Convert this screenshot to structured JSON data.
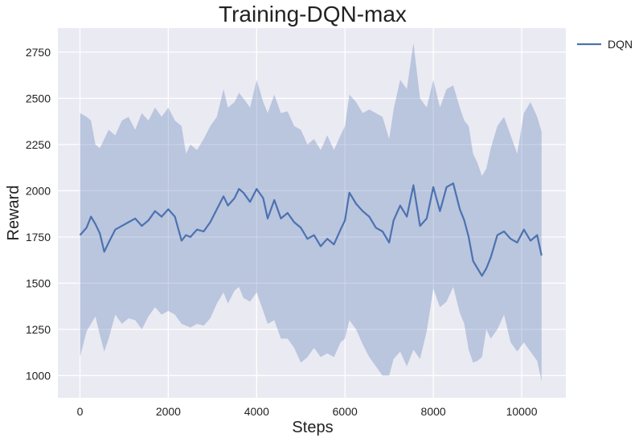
{
  "chart_data": {
    "type": "line",
    "title": "Training-DQN-max",
    "xlabel": "Steps",
    "ylabel": "Reward",
    "xlim": [
      -500,
      11000
    ],
    "ylim": [
      880,
      2880
    ],
    "xticks": [
      0,
      2000,
      4000,
      6000,
      8000,
      10000
    ],
    "yticks": [
      1000,
      1250,
      1500,
      1750,
      2000,
      2250,
      2500,
      2750
    ],
    "grid": true,
    "legend": "outside-top-right",
    "colors": {
      "background": "#eaeaf2",
      "grid": "#ffffff",
      "line": "#4c72b0",
      "band": "#4c72b0"
    },
    "series": [
      {
        "name": "DQN",
        "x": [
          0,
          150,
          250,
          350,
          450,
          550,
          650,
          800,
          950,
          1100,
          1250,
          1400,
          1550,
          1700,
          1850,
          2000,
          2150,
          2300,
          2400,
          2500,
          2650,
          2800,
          2950,
          3100,
          3250,
          3350,
          3500,
          3600,
          3700,
          3850,
          4000,
          4150,
          4250,
          4400,
          4550,
          4700,
          4850,
          5000,
          5150,
          5300,
          5450,
          5600,
          5750,
          5900,
          6000,
          6100,
          6250,
          6400,
          6550,
          6700,
          6850,
          7000,
          7100,
          7250,
          7400,
          7550,
          7700,
          7850,
          8000,
          8150,
          8300,
          8450,
          8600,
          8700,
          8800,
          8900,
          9000,
          9100,
          9200,
          9300,
          9450,
          9600,
          9750,
          9900,
          10050,
          10200,
          10350,
          10450
        ],
        "values": [
          1760,
          1800,
          1860,
          1820,
          1770,
          1670,
          1720,
          1790,
          1810,
          1830,
          1850,
          1810,
          1840,
          1890,
          1860,
          1900,
          1860,
          1730,
          1760,
          1750,
          1790,
          1780,
          1830,
          1900,
          1970,
          1920,
          1960,
          2010,
          1990,
          1940,
          2010,
          1960,
          1850,
          1950,
          1850,
          1880,
          1830,
          1800,
          1740,
          1760,
          1700,
          1740,
          1710,
          1790,
          1840,
          1990,
          1930,
          1890,
          1860,
          1800,
          1780,
          1720,
          1840,
          1920,
          1860,
          2030,
          1810,
          1850,
          2020,
          1890,
          2020,
          2040,
          1900,
          1840,
          1750,
          1620,
          1580,
          1540,
          1580,
          1640,
          1760,
          1780,
          1740,
          1720,
          1790,
          1730,
          1760,
          1650
        ],
        "upper": [
          2420,
          2400,
          2380,
          2250,
          2230,
          2280,
          2330,
          2300,
          2380,
          2400,
          2330,
          2420,
          2380,
          2450,
          2400,
          2450,
          2380,
          2350,
          2200,
          2250,
          2220,
          2280,
          2350,
          2400,
          2550,
          2450,
          2480,
          2530,
          2500,
          2450,
          2600,
          2480,
          2420,
          2520,
          2420,
          2430,
          2350,
          2330,
          2250,
          2280,
          2220,
          2300,
          2220,
          2300,
          2350,
          2520,
          2480,
          2420,
          2440,
          2420,
          2400,
          2280,
          2440,
          2600,
          2550,
          2800,
          2500,
          2450,
          2600,
          2450,
          2550,
          2570,
          2450,
          2380,
          2350,
          2200,
          2150,
          2080,
          2120,
          2230,
          2350,
          2400,
          2300,
          2200,
          2420,
          2480,
          2400,
          2320
        ],
        "lower": [
          1100,
          1240,
          1280,
          1320,
          1220,
          1130,
          1200,
          1330,
          1280,
          1310,
          1300,
          1250,
          1320,
          1370,
          1330,
          1350,
          1330,
          1280,
          1270,
          1260,
          1280,
          1270,
          1310,
          1390,
          1450,
          1390,
          1460,
          1480,
          1420,
          1400,
          1450,
          1350,
          1280,
          1300,
          1200,
          1200,
          1150,
          1070,
          1100,
          1150,
          1100,
          1120,
          1100,
          1180,
          1200,
          1300,
          1250,
          1170,
          1100,
          1050,
          1000,
          1000,
          1090,
          1130,
          1050,
          1140,
          1090,
          1240,
          1470,
          1370,
          1400,
          1480,
          1340,
          1280,
          1140,
          1070,
          1080,
          1100,
          1250,
          1200,
          1250,
          1330,
          1180,
          1130,
          1180,
          1130,
          1080,
          970
        ]
      }
    ]
  }
}
